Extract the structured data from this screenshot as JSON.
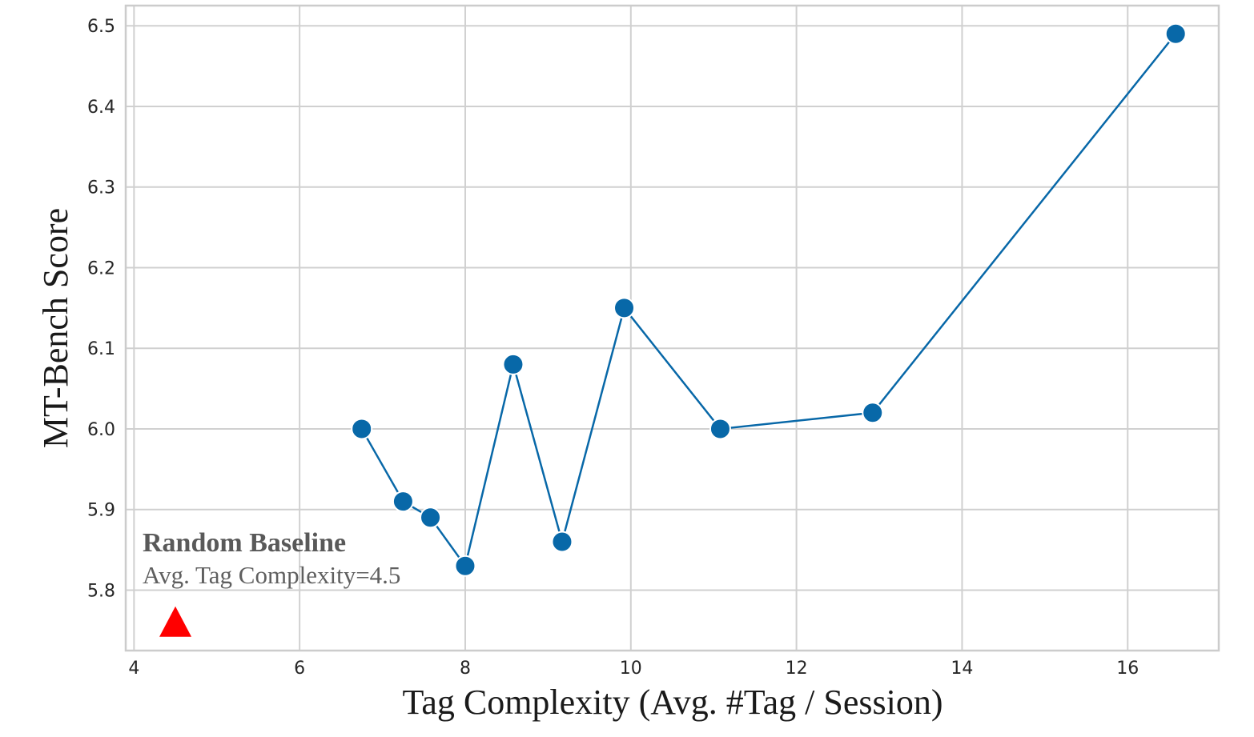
{
  "chart_data": {
    "type": "line",
    "xlabel": "Tag Complexity (Avg. #Tag / Session)",
    "ylabel": "MT-Bench Score",
    "xlim": [
      3.9,
      17.1
    ],
    "ylim": [
      5.725,
      6.525
    ],
    "xticks": [
      4,
      6,
      8,
      10,
      12,
      14,
      16
    ],
    "yticks": [
      5.8,
      5.9,
      6.0,
      6.1,
      6.2,
      6.3,
      6.4,
      6.5
    ],
    "grid": true,
    "series": [
      {
        "color": "#0868a8",
        "marker": "circle",
        "x": [
          6.75,
          7.25,
          7.58,
          8.0,
          8.58,
          9.17,
          9.92,
          11.08,
          12.92,
          16.58
        ],
        "y": [
          6.0,
          5.91,
          5.89,
          5.83,
          6.08,
          5.86,
          6.15,
          6.0,
          6.02,
          6.49
        ]
      }
    ],
    "baseline": {
      "x": 4.5,
      "y": 5.76,
      "color": "#ff0000",
      "marker": "triangle"
    },
    "annotation": {
      "title": "Random Baseline",
      "subtitle": "Avg. Tag Complexity=4.5"
    }
  }
}
